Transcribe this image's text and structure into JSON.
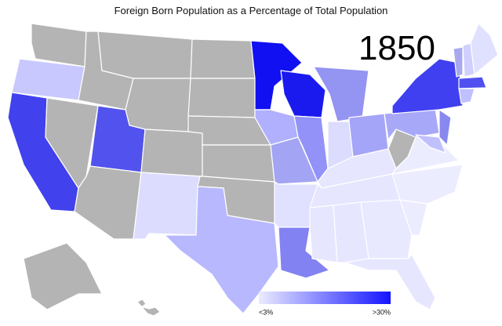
{
  "title": "Foreign Born Population as a Percentage of Total Population",
  "year": "1850",
  "legend": {
    "min_label": "<3%",
    "max_label": ">30%",
    "colors": [
      "#ebebff",
      "#1414ff"
    ]
  },
  "no_data_color": "#b4b4b4",
  "regions": [
    {
      "color": "#b4b4b4"
    },
    {
      "color": "#c8c8ff"
    },
    {
      "color": "#4141ee"
    },
    {
      "color": "#b4b4b4"
    },
    {
      "color": "#b4b4b4"
    },
    {
      "color": "#b4b4b4"
    },
    {
      "color": "#b4b4b4"
    },
    {
      "color": "#5252ee"
    },
    {
      "color": "#b4b4b4"
    },
    {
      "color": "#b4b4b4"
    },
    {
      "color": "#dcdcff"
    },
    {
      "color": "#b4b4b4"
    },
    {
      "color": "#b4b4b4"
    },
    {
      "color": "#b4b4b4"
    },
    {
      "color": "#b4b4b4"
    },
    {
      "color": "#b4b4b4"
    },
    {
      "color": "#b8b8ff"
    },
    {
      "color": "#1010f2"
    },
    {
      "color": "#1a1aee"
    },
    {
      "color": "#b0b0ff"
    },
    {
      "color": "#a4a4f4"
    },
    {
      "color": "#e0e0ff"
    },
    {
      "color": "#8282f2"
    },
    {
      "color": "#9292f8"
    },
    {
      "color": "#9494f2"
    },
    {
      "color": "#dcdcff"
    },
    {
      "color": "#a4a4f8"
    },
    {
      "color": "#e6e6ff"
    },
    {
      "color": "#e6e6ff"
    },
    {
      "color": "#e6e6ff"
    },
    {
      "color": "#e6e6ff"
    },
    {
      "color": "#e8e8ff"
    },
    {
      "color": "#e6e6ff"
    },
    {
      "color": "#ececff"
    },
    {
      "color": "#ececff"
    },
    {
      "color": "#ececff"
    },
    {
      "color": "#b4b4b4"
    },
    {
      "color": "#a8a8f8"
    },
    {
      "color": "#4040f0"
    },
    {
      "color": "#8888f0"
    },
    {
      "color": "#c0c0ff"
    },
    {
      "color": "#a8a8f0"
    },
    {
      "color": "#d0d0ff"
    },
    {
      "color": "#e0e0ff"
    },
    {
      "color": "#5050f0"
    },
    {
      "color": "#c0c0ff"
    },
    {
      "color": "#b4b4b4"
    },
    {
      "color": "#b4b4b4"
    }
  ]
}
